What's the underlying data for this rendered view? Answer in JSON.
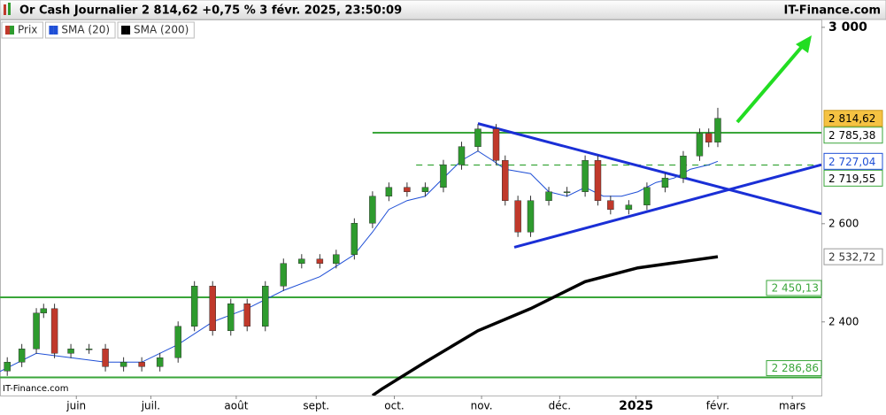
{
  "chart_data": {
    "type": "candlestick",
    "title": "Or Cash Journalier 2 814,62 +0,75 % 3 févr. 2025, 23:50:09",
    "source": "IT-Finance.com",
    "watermark": "IT-Finance.com",
    "xlim": [
      0,
      226
    ],
    "ylim": [
      2250,
      3016
    ],
    "xticks": [
      {
        "value": 21,
        "label": "juin"
      },
      {
        "value": 41.5,
        "label": "juil."
      },
      {
        "value": 65,
        "label": "août"
      },
      {
        "value": 87,
        "label": "sept."
      },
      {
        "value": 108.5,
        "label": "oct."
      },
      {
        "value": 132.5,
        "label": "nov."
      },
      {
        "value": 154,
        "label": "déc."
      },
      {
        "value": 175,
        "label": "2025",
        "bold": true
      },
      {
        "value": 197.5,
        "label": "févr."
      },
      {
        "value": 218,
        "label": "mars"
      }
    ],
    "yticks": [
      {
        "value": 3000,
        "label": "3 000",
        "bold": true
      },
      {
        "value": 2600,
        "label": "2 600"
      },
      {
        "value": 2400,
        "label": "2 400"
      }
    ],
    "price": {
      "name": "Prix",
      "up_color": "#2e9b2e",
      "down_color": "#c0392b",
      "last_label": "2 814,62",
      "last_label_color": "#f5c242",
      "x": [
        2,
        6,
        10,
        12,
        15,
        19.5,
        24.5,
        29,
        34,
        39,
        44,
        49,
        53.5,
        58.5,
        63.5,
        68,
        73,
        78,
        83,
        88,
        92.5,
        97.5,
        102.5,
        107,
        112,
        117,
        122,
        127,
        131.5,
        136.5,
        139,
        142.5,
        146,
        151,
        156,
        161,
        164.5,
        168,
        173,
        178,
        183,
        188,
        192.5,
        195,
        197.5
      ],
      "open": [
        2300,
        2318,
        2345,
        2418,
        2427,
        2336,
        2345,
        2345,
        2309,
        2318,
        2309,
        2327,
        2391,
        2473,
        2382,
        2437,
        2391,
        2473,
        2519,
        2528,
        2519,
        2537,
        2601,
        2656,
        2674,
        2665,
        2674,
        2720,
        2757,
        2793,
        2729,
        2647,
        2583,
        2647,
        2665,
        2665,
        2729,
        2647,
        2629,
        2638,
        2674,
        2693,
        2738,
        2784,
        2766
      ],
      "high": [
        2328,
        2355,
        2428,
        2437,
        2437,
        2355,
        2355,
        2355,
        2328,
        2328,
        2337,
        2401,
        2483,
        2483,
        2447,
        2447,
        2483,
        2529,
        2538,
        2538,
        2547,
        2611,
        2666,
        2684,
        2684,
        2684,
        2730,
        2767,
        2803,
        2803,
        2739,
        2657,
        2657,
        2675,
        2675,
        2739,
        2739,
        2657,
        2648,
        2684,
        2703,
        2748,
        2794,
        2794,
        2836
      ],
      "low": [
        2290,
        2308,
        2335,
        2408,
        2326,
        2326,
        2335,
        2299,
        2299,
        2299,
        2299,
        2317,
        2381,
        2372,
        2372,
        2381,
        2381,
        2463,
        2509,
        2509,
        2509,
        2527,
        2591,
        2646,
        2655,
        2655,
        2664,
        2710,
        2747,
        2719,
        2637,
        2573,
        2573,
        2637,
        2655,
        2655,
        2637,
        2619,
        2619,
        2628,
        2664,
        2683,
        2728,
        2756,
        2756
      ],
      "close": [
        2318,
        2345,
        2418,
        2427,
        2336,
        2345,
        2345,
        2309,
        2318,
        2309,
        2327,
        2391,
        2473,
        2382,
        2437,
        2391,
        2473,
        2519,
        2528,
        2519,
        2537,
        2601,
        2656,
        2674,
        2665,
        2674,
        2720,
        2757,
        2793,
        2729,
        2647,
        2583,
        2647,
        2665,
        2665,
        2729,
        2647,
        2629,
        2638,
        2674,
        2693,
        2738,
        2784,
        2766,
        2814.62
      ]
    },
    "series": [
      {
        "name": "SMA (20)",
        "color": "#1f4fd6",
        "width": 1,
        "last_label": "2 727,04",
        "x": [
          0,
          10,
          19.5,
          29,
          39,
          49,
          58.5,
          68,
          78,
          88,
          97.5,
          102.5,
          107,
          112,
          117,
          122,
          127,
          131.5,
          135.5,
          139,
          146,
          151,
          156,
          161,
          166,
          171,
          175.5,
          180.5,
          185.5,
          190,
          195,
          197.5
        ],
        "values": [
          2299,
          2336,
          2327,
          2318,
          2318,
          2354,
          2400,
          2427,
          2464,
          2492,
          2537,
          2583,
          2629,
          2647,
          2656,
          2693,
          2729,
          2748,
          2729,
          2711,
          2702,
          2665,
          2656,
          2674,
          2656,
          2656,
          2665,
          2684,
          2693,
          2711,
          2720,
          2727.04
        ]
      },
      {
        "name": "SMA (200)",
        "color": "#000000",
        "width": 3.5,
        "last_label": "2 532,72",
        "x": [
          102.5,
          105,
          117,
          131.5,
          146,
          161,
          175.5,
          190,
          197.5
        ],
        "values": [
          2250,
          2263,
          2318,
          2382,
          2427,
          2482,
          2510,
          2525,
          2532.72
        ]
      }
    ],
    "levels": [
      {
        "value": 2785.38,
        "label": "2 785,38",
        "color": "#3aa63a",
        "dashed": false,
        "from": 102.5,
        "label_position": "axis"
      },
      {
        "value": 2719.55,
        "label": "2 719,55",
        "color": "#3aa63a",
        "dashed": true,
        "from": 114.5,
        "label_position": "axis"
      },
      {
        "value": 2450.13,
        "label": "2 450,13",
        "color": "#3aa63a",
        "dashed": false,
        "from": 0,
        "label_position": "plot"
      },
      {
        "value": 2286.86,
        "label": "2 286,86",
        "color": "#3aa63a",
        "dashed": false,
        "from": 0,
        "label_position": "plot"
      }
    ],
    "trendlines": [
      {
        "color": "#1a2fd6",
        "x": [
          131.5,
          226
        ],
        "values": [
          2804,
          2620
        ]
      },
      {
        "color": "#1a2fd6",
        "x": [
          141.5,
          226
        ],
        "values": [
          2552,
          2720
        ]
      }
    ]
  }
}
